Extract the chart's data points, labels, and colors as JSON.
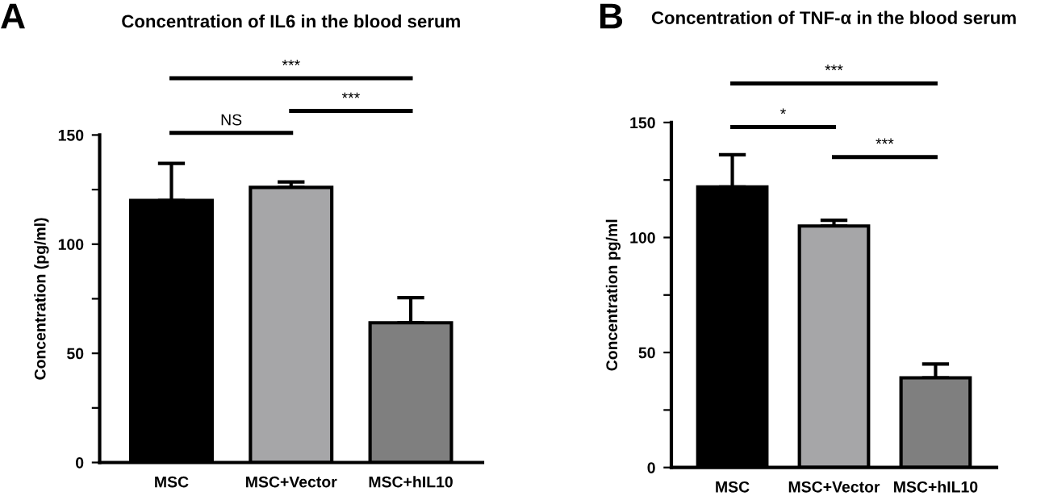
{
  "chart_data": [
    {
      "type": "bar",
      "title": "Concentration of IL6 in the blood serum",
      "ylabel": "Concentration (pg/ml)",
      "categories": [
        "MSC",
        "MSC+Vector",
        "MSC+hIL10"
      ],
      "values": [
        120,
        126,
        64
      ],
      "colors": [
        "#000000",
        "#a6a6a8",
        "#7f7f7f"
      ],
      "errors": [
        [
          120,
          137
        ],
        [
          126,
          128.5
        ],
        [
          64,
          75.5
        ]
      ],
      "ylim": [
        0,
        150
      ],
      "yticks": [
        0,
        {
          "value": 25,
          "label": null
        },
        50,
        {
          "value": 75,
          "label": null
        },
        100,
        {
          "value": 125,
          "label": null
        },
        150
      ],
      "annotations": [
        "A",
        "NS",
        "***",
        "***"
      ]
    },
    {
      "type": "bar",
      "title": "Concentration of TNF-α in the blood serum",
      "ylabel": "Concentration pg/ml",
      "categories": [
        "MSC",
        "MSC+Vector",
        "MSC+hIL10"
      ],
      "values": [
        122,
        105,
        39
      ],
      "colors": [
        "#000000",
        "#a6a6a8",
        "#7f7f7f"
      ],
      "errors": [
        [
          122,
          136
        ],
        [
          105,
          107.5
        ],
        [
          39,
          45
        ]
      ],
      "ylim": [
        0,
        150
      ],
      "yticks": [
        0,
        {
          "value": 25,
          "label": null
        },
        50,
        {
          "value": 75,
          "label": null
        },
        100,
        {
          "value": 125,
          "label": null
        },
        150
      ],
      "annotations": [
        "B",
        "*",
        "***",
        "***"
      ]
    }
  ]
}
